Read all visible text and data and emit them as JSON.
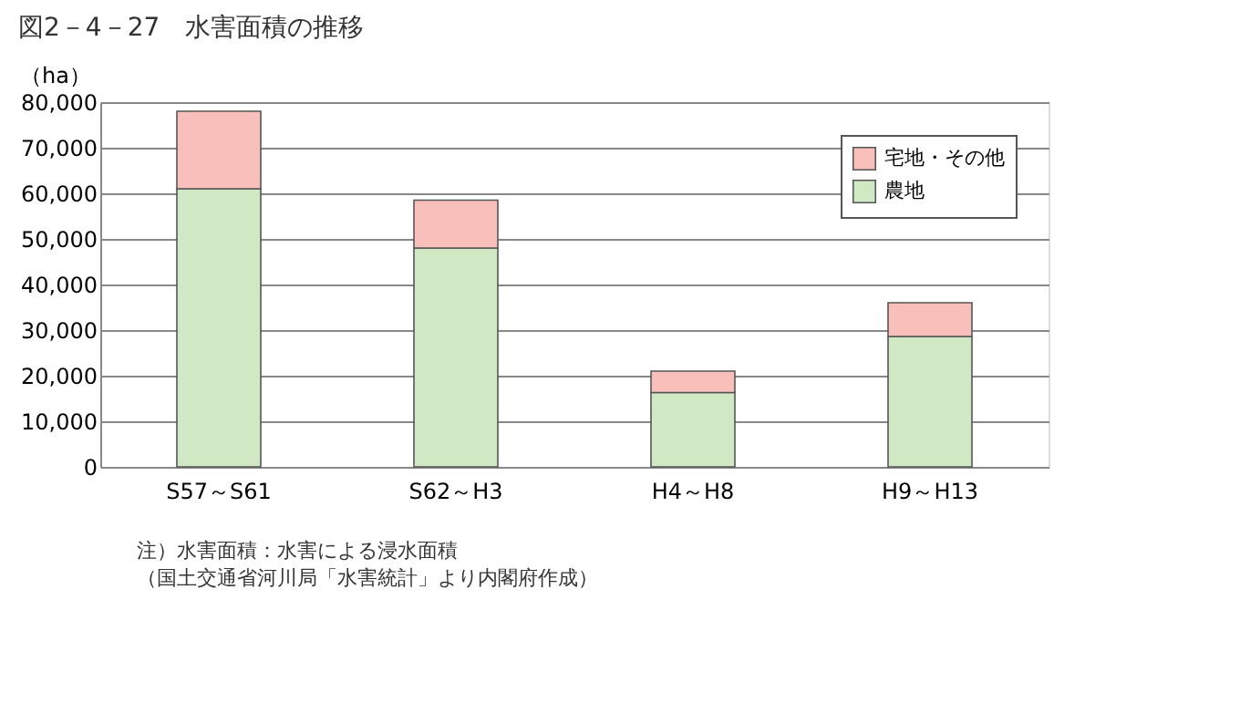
{
  "chart_data": {
    "type": "bar",
    "title": "図2－4－27　水害面積の推移",
    "ylabel": "（ha）",
    "categories": [
      "S57～S61",
      "S62～H3",
      "H4～H8",
      "H9～H13"
    ],
    "stacked": true,
    "series": [
      {
        "name": "農地",
        "color": "#d1e8c4",
        "values": [
          61000,
          48000,
          16300,
          28600
        ]
      },
      {
        "name": "宅地・その他",
        "color": "#f9c0bb",
        "values": [
          17000,
          10500,
          4700,
          7400
        ]
      }
    ],
    "ylim": [
      0,
      80000
    ],
    "yticks": [
      0,
      {
        "value": 10000,
        "label": "10,000"
      },
      {
        "value": 20000,
        "label": "20,000"
      },
      {
        "value": 30000,
        "label": "30,000"
      },
      {
        "value": 40000,
        "label": "40,000"
      },
      {
        "value": 50000,
        "label": "50,000"
      },
      {
        "value": 60000,
        "label": "60,000"
      },
      {
        "value": 70000,
        "label": "70,000"
      },
      {
        "value": 80000,
        "label": "80,000"
      }
    ],
    "grid": "y",
    "legend": "top right",
    "annotations": [
      "注）水害面積：水害による浸水面積",
      "（国土交通省河川局「水害統計」より内閣府作成）"
    ]
  }
}
